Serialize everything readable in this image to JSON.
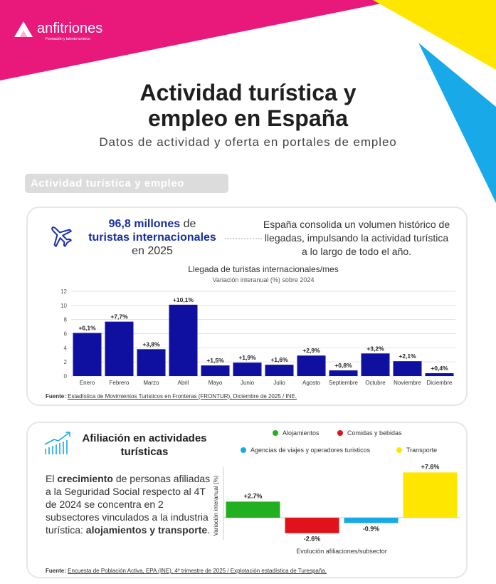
{
  "brand": {
    "name": "anfitriones",
    "tagline": "Formación y talento turístico"
  },
  "header": {
    "title_line1": "Actividad turística y",
    "title_line2": "empleo en España",
    "subtitle": "Datos de actividad y oferta en portales de empleo"
  },
  "section": {
    "label": "Actividad turística y empleo"
  },
  "kpi": {
    "value": "96,8 millones",
    "of": "de",
    "label": "turistas internacionales",
    "period": "en 2025",
    "description": "España consolida un volumen histórico de llegadas, impulsando la actividad turística a lo largo de todo el año."
  },
  "colors": {
    "magenta": "#e8197b",
    "yellow": "#ffe600",
    "cyan": "#18a9e8",
    "navy": "#0f0fa0",
    "green": "#22b020",
    "red": "#e0121b"
  },
  "chart_data": [
    {
      "type": "bar",
      "title": "Llegada de turistas internacionales/mes",
      "subtitle": "Variación interanual (%) sobre 2024",
      "categories": [
        "Enero",
        "Febrero",
        "Marzo",
        "Abril",
        "Mayo",
        "Junio",
        "Julio",
        "Agosto",
        "Septiembre",
        "Octubre",
        "Noviembre",
        "Diciembre"
      ],
      "values": [
        6.1,
        7.7,
        3.8,
        10.1,
        1.5,
        1.9,
        1.6,
        2.9,
        0.8,
        3.2,
        2.1,
        0.4
      ],
      "labels": [
        "+6,1%",
        "+7,7%",
        "+3,8%",
        "+10,1%",
        "+1,5%",
        "+1,9%",
        "+1,6%",
        "+2,9%",
        "+0,8%",
        "+3,2%",
        "+2,1%",
        "+0,4%"
      ],
      "ylim": [
        0,
        12
      ],
      "yticks": [
        "0",
        "2",
        "4",
        "6",
        "8",
        "10",
        "12"
      ],
      "color": "#0f0fa0",
      "grid": true
    },
    {
      "type": "bar",
      "title": "Afiliación en actividades turísticas",
      "xlabel": "Evolución afiliaciones/subsector",
      "ylabel": "Variación interanual (%)",
      "categories": [
        "Alojamientos",
        "Comidas y bebidas",
        "Agencias de viajes y operadores turisticos",
        "Transporte"
      ],
      "values": [
        2.7,
        -2.6,
        -0.9,
        7.6
      ],
      "labels": [
        "+2.7%",
        "-2.6%",
        "-0.9%",
        "+7.6%"
      ],
      "colors": [
        "#22b020",
        "#e0121b",
        "#18a9e8",
        "#ffe600"
      ],
      "ylim": [
        -3,
        8
      ],
      "legend": "top"
    }
  ],
  "source1": {
    "prefix": "Fuente:",
    "text": "Estadística de Movimientos Turísticos en Fronteras (FRONTUR), Diciembre de 2025 / INE."
  },
  "affiliation": {
    "title": "Afiliación en actividades turísticas",
    "text_1": "El",
    "text_bold1": "crecimiento",
    "text_2": "de personas afiliadas a la Seguridad Social respecto al 4T de 2024 se concentra en 2 subsectores vinculados a la industria turística:",
    "text_bold2": "alojamientos y transporte",
    "text_3": "."
  },
  "source2": {
    "prefix": "Fuente:",
    "text": "Encuesta de Población Activa, EPA (INE), 4º trimestre de 2025 / Explotación estadística de Turespaña."
  }
}
